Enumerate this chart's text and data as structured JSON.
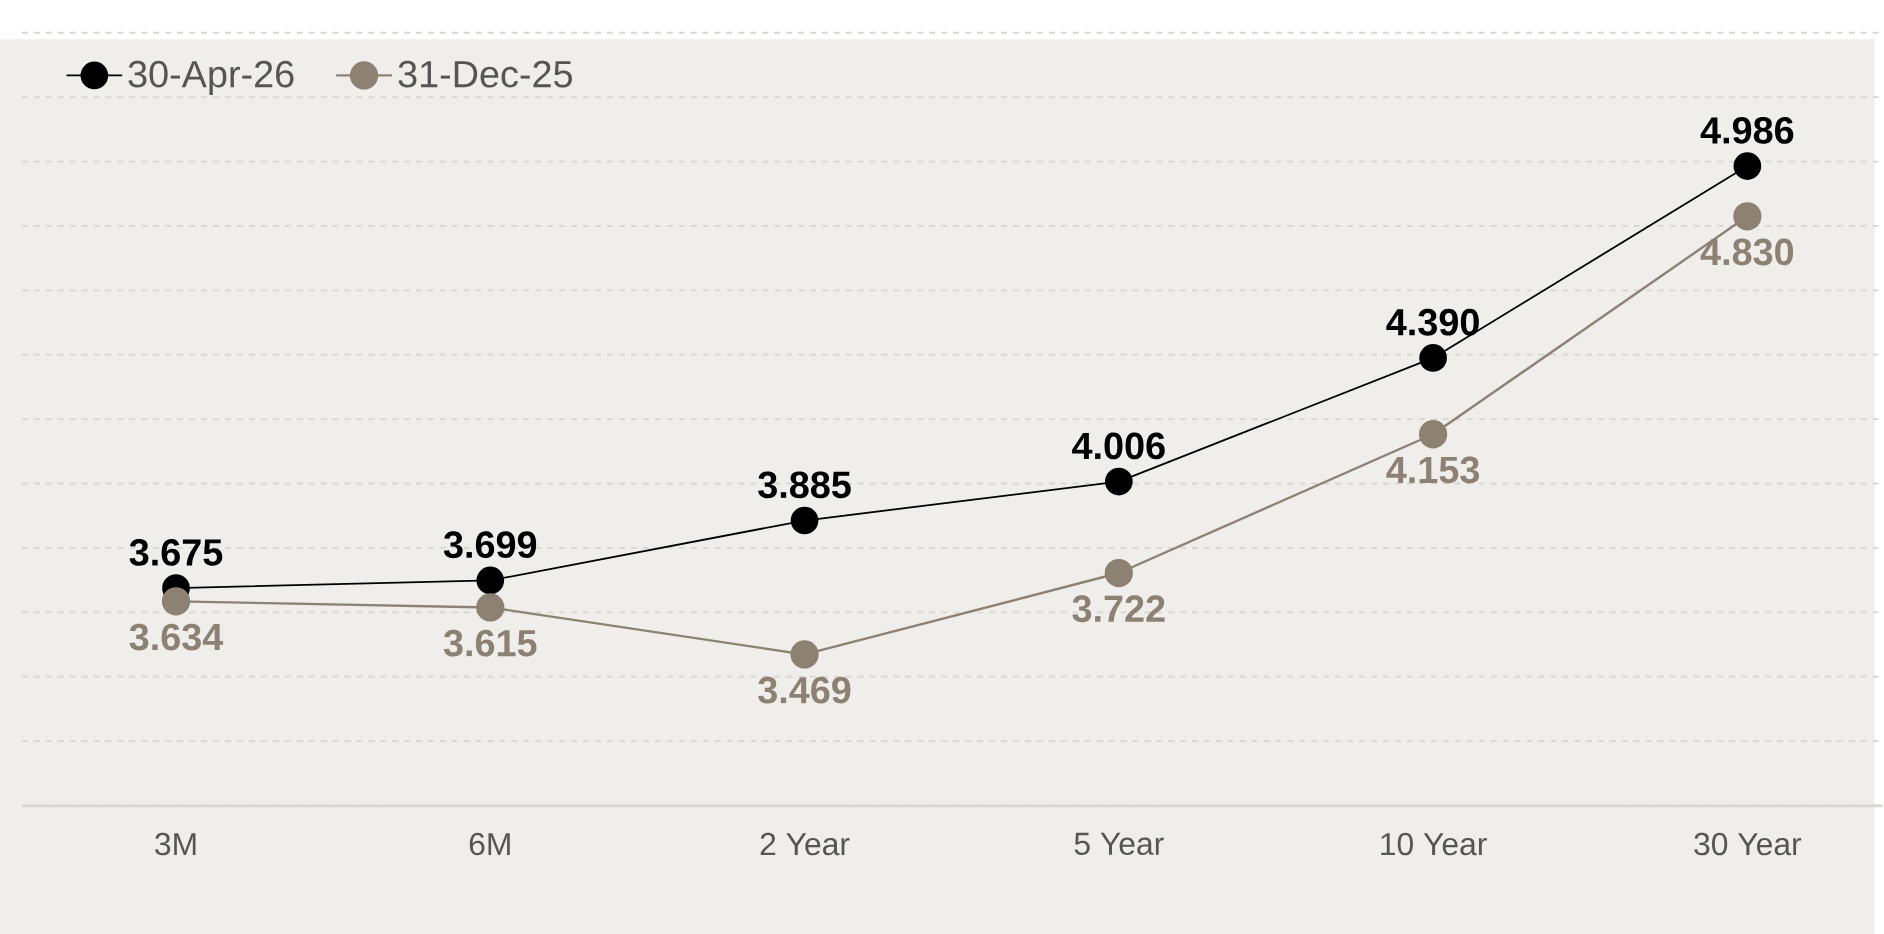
{
  "chart_data": {
    "type": "line",
    "categories": [
      "3M",
      "6M",
      "2 Year",
      "5 Year",
      "10 Year",
      "30 Year"
    ],
    "series": [
      {
        "name": "30-Apr-26",
        "color": "#000000",
        "values": [
          3.675,
          3.699,
          3.885,
          4.006,
          4.39,
          4.986
        ],
        "value_labels": [
          "3.675",
          "3.699",
          "3.885",
          "4.006",
          "4.390",
          "4.986"
        ]
      },
      {
        "name": "31-Dec-25",
        "color": "#8c8172",
        "values": [
          3.634,
          3.615,
          3.469,
          3.722,
          4.153,
          4.83
        ],
        "value_labels": [
          "3.634",
          "3.615",
          "3.469",
          "3.722",
          "4.153",
          "4.830"
        ]
      }
    ],
    "tick_labels": "x",
    "grid": "y",
    "legend": "top left",
    "marker": "circle",
    "line_style": "solid"
  }
}
